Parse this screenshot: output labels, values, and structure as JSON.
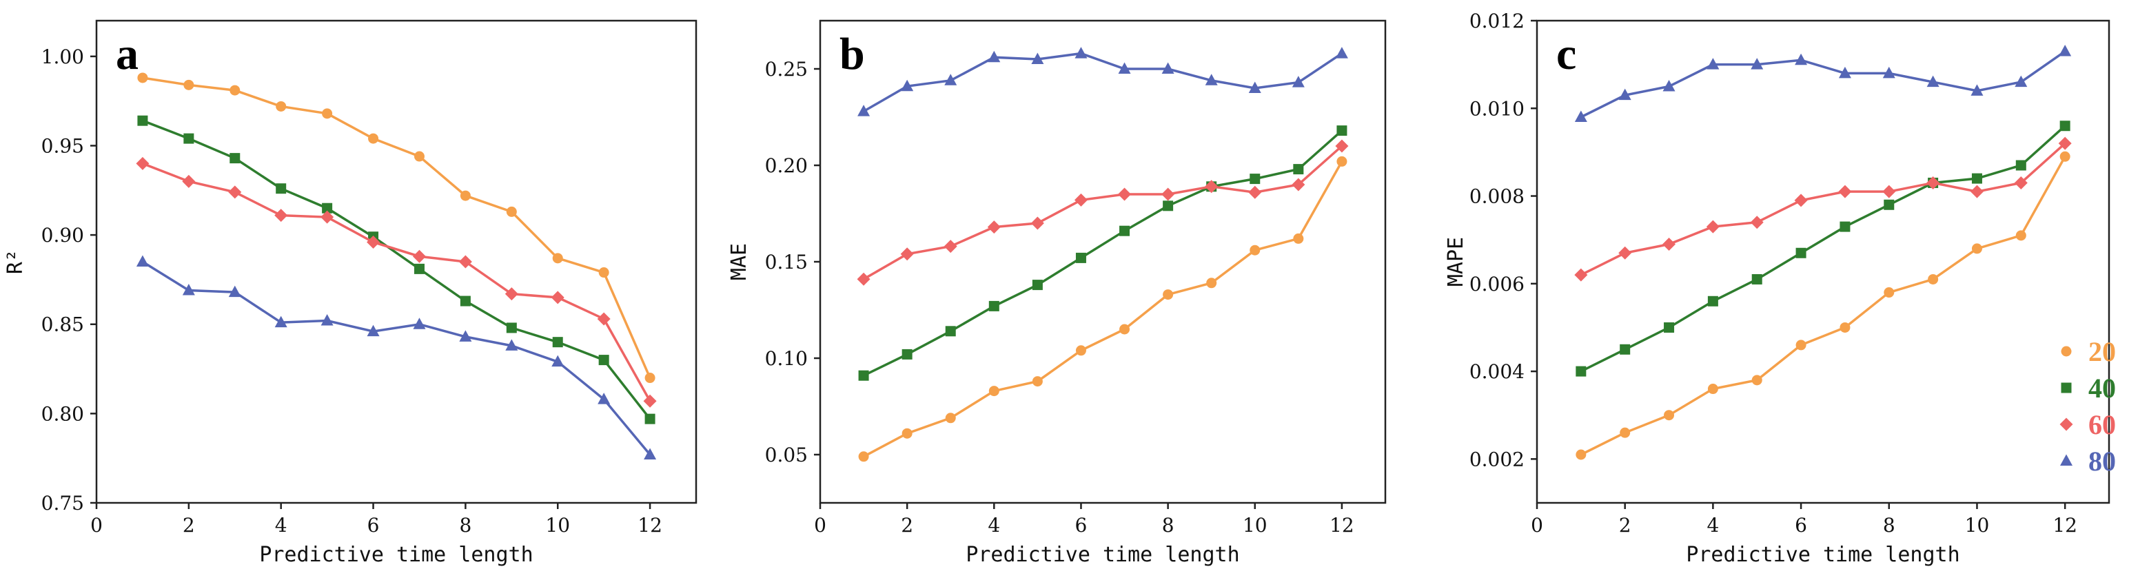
{
  "colors": {
    "20": "#F5A04A",
    "40": "#2E7D2E",
    "60": "#EE6464",
    "80": "#5566B5"
  },
  "legend": {
    "items": [
      {
        "key": "20",
        "label": "20",
        "marker": "circle"
      },
      {
        "key": "40",
        "label": "40",
        "marker": "square"
      },
      {
        "key": "60",
        "label": "60",
        "marker": "diamond"
      },
      {
        "key": "80",
        "label": "80",
        "marker": "triangle"
      }
    ]
  },
  "chart_data": [
    {
      "panel": "a",
      "type": "line",
      "xlabel": "Predictive time length",
      "ylabel": "R²",
      "xlim": [
        0,
        13
      ],
      "ylim": [
        0.75,
        1.02
      ],
      "xticks": [
        0,
        2,
        4,
        6,
        8,
        10,
        12
      ],
      "yticks": [
        0.75,
        0.8,
        0.85,
        0.9,
        0.95,
        1.0
      ],
      "ytick_labels": [
        "0.75",
        "0.80",
        "0.85",
        "0.90",
        "0.95",
        "1.00"
      ],
      "x": [
        1,
        2,
        3,
        4,
        5,
        6,
        7,
        8,
        9,
        10,
        11,
        12
      ],
      "series": [
        {
          "name": "20",
          "values": [
            0.988,
            0.984,
            0.981,
            0.972,
            0.968,
            0.954,
            0.944,
            0.922,
            0.913,
            0.887,
            0.879,
            0.82
          ]
        },
        {
          "name": "40",
          "values": [
            0.964,
            0.954,
            0.943,
            0.926,
            0.915,
            0.899,
            0.881,
            0.863,
            0.848,
            0.84,
            0.83,
            0.797
          ]
        },
        {
          "name": "60",
          "values": [
            0.94,
            0.93,
            0.924,
            0.911,
            0.91,
            0.896,
            0.888,
            0.885,
            0.867,
            0.865,
            0.853,
            0.807
          ]
        },
        {
          "name": "80",
          "values": [
            0.885,
            0.869,
            0.868,
            0.851,
            0.852,
            0.846,
            0.85,
            0.843,
            0.838,
            0.829,
            0.808,
            0.777
          ]
        }
      ]
    },
    {
      "panel": "b",
      "type": "line",
      "xlabel": "Predictive time length",
      "ylabel": "MAE",
      "xlim": [
        0,
        13
      ],
      "ylim": [
        0.025,
        0.275
      ],
      "xticks": [
        0,
        2,
        4,
        6,
        8,
        10,
        12
      ],
      "yticks": [
        0.05,
        0.1,
        0.15,
        0.2,
        0.25
      ],
      "ytick_labels": [
        "0.05",
        "0.10",
        "0.15",
        "0.20",
        "0.25"
      ],
      "x": [
        1,
        2,
        3,
        4,
        5,
        6,
        7,
        8,
        9,
        10,
        11,
        12
      ],
      "series": [
        {
          "name": "20",
          "values": [
            0.049,
            0.061,
            0.069,
            0.083,
            0.088,
            0.104,
            0.115,
            0.133,
            0.139,
            0.156,
            0.162,
            0.202
          ]
        },
        {
          "name": "40",
          "values": [
            0.091,
            0.102,
            0.114,
            0.127,
            0.138,
            0.152,
            0.166,
            0.179,
            0.189,
            0.193,
            0.198,
            0.218
          ]
        },
        {
          "name": "60",
          "values": [
            0.141,
            0.154,
            0.158,
            0.168,
            0.17,
            0.182,
            0.185,
            0.185,
            0.189,
            0.186,
            0.19,
            0.21
          ]
        },
        {
          "name": "80",
          "values": [
            0.228,
            0.241,
            0.244,
            0.256,
            0.255,
            0.258,
            0.25,
            0.25,
            0.244,
            0.24,
            0.243,
            0.258
          ]
        }
      ]
    },
    {
      "panel": "c",
      "type": "line",
      "xlabel": "Predictive time length",
      "ylabel": "MAPE",
      "xlim": [
        0,
        13
      ],
      "ylim": [
        0.001,
        0.012
      ],
      "xticks": [
        0,
        2,
        4,
        6,
        8,
        10,
        12
      ],
      "yticks": [
        0.002,
        0.004,
        0.006,
        0.008,
        0.01,
        0.012
      ],
      "ytick_labels": [
        "0.002",
        "0.004",
        "0.006",
        "0.008",
        "0.010",
        "0.012"
      ],
      "x": [
        1,
        2,
        3,
        4,
        5,
        6,
        7,
        8,
        9,
        10,
        11,
        12
      ],
      "series": [
        {
          "name": "20",
          "values": [
            0.0021,
            0.0026,
            0.003,
            0.0036,
            0.0038,
            0.0046,
            0.005,
            0.0058,
            0.0061,
            0.0068,
            0.0071,
            0.0089
          ]
        },
        {
          "name": "40",
          "values": [
            0.004,
            0.0045,
            0.005,
            0.0056,
            0.0061,
            0.0067,
            0.0073,
            0.0078,
            0.0083,
            0.0084,
            0.0087,
            0.0096
          ]
        },
        {
          "name": "60",
          "values": [
            0.0062,
            0.0067,
            0.0069,
            0.0073,
            0.0074,
            0.0079,
            0.0081,
            0.0081,
            0.0083,
            0.0081,
            0.0083,
            0.0092
          ]
        },
        {
          "name": "80",
          "values": [
            0.0098,
            0.0103,
            0.0105,
            0.011,
            0.011,
            0.0111,
            0.0108,
            0.0108,
            0.0106,
            0.0104,
            0.0106,
            0.0113
          ]
        }
      ]
    }
  ]
}
